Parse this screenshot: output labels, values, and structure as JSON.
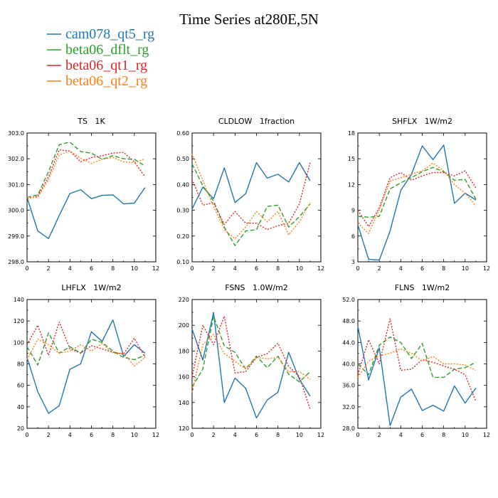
{
  "figure": {
    "title": "Time Series at280E,5N"
  },
  "legend": [
    {
      "name": "cam078_qt5_rg",
      "color": "#1f77b4",
      "dash": "solid"
    },
    {
      "name": "beta06_dflt_rg",
      "color": "#2ca02c",
      "dash": "dashed"
    },
    {
      "name": "beta06_qt1_rg",
      "color": "#d62728",
      "dash": "dotted"
    },
    {
      "name": "beta06_qt2_rg",
      "color": "#ff7f0e",
      "dash": "dotted"
    }
  ],
  "chart_data": [
    {
      "type": "line",
      "title": "TS   1K",
      "x": [
        0,
        1,
        2,
        3,
        4,
        5,
        6,
        7,
        8,
        9,
        10,
        11
      ],
      "xlim": [
        0,
        12
      ],
      "ylim": [
        298.0,
        303.0
      ],
      "xticks": [
        0,
        2,
        4,
        6,
        8,
        10,
        12
      ],
      "yticks": [
        "298.0",
        "299.0",
        "300.0",
        "301.0",
        "302.0",
        "303.0"
      ],
      "series": [
        {
          "name": "cam078_qt5_rg",
          "values": [
            300.5,
            299.2,
            298.9,
            299.8,
            300.65,
            300.8,
            300.45,
            300.58,
            300.6,
            300.25,
            300.28,
            300.88
          ]
        },
        {
          "name": "beta06_dflt_rg",
          "values": [
            300.5,
            300.6,
            301.5,
            302.55,
            302.65,
            302.28,
            302.22,
            301.98,
            302.12,
            302.0,
            301.98,
            301.72
          ]
        },
        {
          "name": "beta06_qt1_rg",
          "values": [
            300.45,
            300.55,
            301.3,
            302.35,
            302.3,
            301.88,
            302.05,
            302.12,
            302.22,
            302.25,
            301.88,
            301.3
          ]
        },
        {
          "name": "beta06_qt2_rg",
          "values": [
            300.5,
            300.5,
            301.2,
            302.15,
            302.3,
            302.02,
            301.82,
            301.98,
            302.05,
            301.88,
            301.85,
            302.0
          ]
        }
      ]
    },
    {
      "type": "line",
      "title": "CLDLOW   1fraction",
      "x": [
        0,
        1,
        2,
        3,
        4,
        5,
        6,
        7,
        8,
        9,
        10,
        11
      ],
      "xlim": [
        0,
        12
      ],
      "ylim": [
        0.1,
        0.6
      ],
      "xticks": [
        0,
        2,
        4,
        6,
        8,
        10,
        12
      ],
      "yticks": [
        "0.10",
        "0.20",
        "0.30",
        "0.40",
        "0.50",
        "0.60"
      ],
      "series": [
        {
          "name": "cam078_qt5_rg",
          "values": [
            0.305,
            0.39,
            0.345,
            0.465,
            0.33,
            0.365,
            0.485,
            0.425,
            0.44,
            0.41,
            0.485,
            0.415
          ]
        },
        {
          "name": "beta06_dflt_rg",
          "values": [
            0.48,
            0.395,
            0.335,
            0.235,
            0.163,
            0.22,
            0.225,
            0.315,
            0.32,
            0.235,
            0.275,
            0.325
          ]
        },
        {
          "name": "beta06_qt1_rg",
          "values": [
            0.42,
            0.32,
            0.33,
            0.245,
            0.295,
            0.25,
            0.25,
            0.225,
            0.24,
            0.25,
            0.325,
            0.485
          ]
        },
        {
          "name": "beta06_qt2_rg",
          "values": [
            0.52,
            0.415,
            0.315,
            0.225,
            0.19,
            0.235,
            0.295,
            0.255,
            0.295,
            0.205,
            0.255,
            0.33
          ]
        }
      ]
    },
    {
      "type": "line",
      "title": "SHFLX   1W/m2",
      "x": [
        0,
        1,
        2,
        3,
        4,
        5,
        6,
        7,
        8,
        9,
        10,
        11
      ],
      "xlim": [
        0,
        12
      ],
      "ylim": [
        3,
        18
      ],
      "xticks": [
        0,
        2,
        4,
        6,
        8,
        10,
        12
      ],
      "yticks": [
        "3",
        "6",
        "9",
        "12",
        "15",
        "18"
      ],
      "series": [
        {
          "name": "cam078_qt5_rg",
          "values": [
            7.3,
            3.3,
            3.2,
            6.6,
            11.3,
            13.2,
            16.5,
            14.9,
            16.6,
            9.8,
            11.0,
            10.2
          ]
        },
        {
          "name": "beta06_dflt_rg",
          "values": [
            8.3,
            8.2,
            8.3,
            11.5,
            12.2,
            12.8,
            13.5,
            14.0,
            13.5,
            12.5,
            12.6,
            10.3
          ]
        },
        {
          "name": "beta06_qt1_rg",
          "values": [
            9.0,
            7.1,
            9.3,
            12.8,
            13.4,
            12.5,
            13.0,
            13.4,
            13.4,
            13.0,
            13.6,
            11.6
          ]
        },
        {
          "name": "beta06_qt2_rg",
          "values": [
            7.5,
            6.3,
            9.1,
            12.4,
            12.8,
            13.2,
            13.6,
            14.5,
            13.6,
            12.0,
            11.0,
            9.5
          ]
        }
      ]
    },
    {
      "type": "line",
      "title": "LHFLX   1W/m2",
      "x": [
        0,
        1,
        2,
        3,
        4,
        5,
        6,
        7,
        8,
        9,
        10,
        11
      ],
      "xlim": [
        0,
        12
      ],
      "ylim": [
        20,
        140
      ],
      "xticks": [
        0,
        2,
        4,
        6,
        8,
        10,
        12
      ],
      "yticks": [
        "20",
        "40",
        "60",
        "80",
        "100",
        "120",
        "140"
      ],
      "series": [
        {
          "name": "cam078_qt5_rg",
          "values": [
            86,
            54,
            34,
            41,
            75,
            80,
            110,
            101,
            121,
            87,
            98,
            90
          ]
        },
        {
          "name": "beta06_dflt_rg",
          "values": [
            96,
            79,
            109,
            90,
            96,
            90,
            103,
            100,
            92,
            86,
            84,
            88
          ]
        },
        {
          "name": "beta06_qt1_rg",
          "values": [
            98,
            116,
            88,
            119,
            94,
            90,
            97,
            94,
            91,
            89,
            104,
            86
          ]
        },
        {
          "name": "beta06_qt2_rg",
          "values": [
            84,
            103,
            98,
            90,
            92,
            98,
            92,
            99,
            90,
            90,
            78,
            86
          ]
        }
      ]
    },
    {
      "type": "line",
      "title": "FSNS   1.0W/m2",
      "x": [
        0,
        1,
        2,
        3,
        4,
        5,
        6,
        7,
        8,
        9,
        10,
        11
      ],
      "xlim": [
        0,
        12
      ],
      "ylim": [
        120,
        220
      ],
      "xticks": [
        0,
        2,
        4,
        6,
        8,
        10,
        12
      ],
      "yticks": [
        "120",
        "140",
        "160",
        "180",
        "200",
        "220"
      ],
      "series": [
        {
          "name": "cam078_qt5_rg",
          "values": [
            197,
            173,
            210,
            140,
            159,
            151,
            128,
            142,
            148,
            179,
            158,
            145
          ]
        },
        {
          "name": "beta06_dflt_rg",
          "values": [
            152,
            166,
            207,
            184,
            179,
            166,
            176,
            167,
            176,
            162,
            156,
            164
          ]
        },
        {
          "name": "beta06_qt1_rg",
          "values": [
            160,
            200,
            185,
            207,
            163,
            164,
            175,
            178,
            186,
            168,
            160,
            135
          ]
        },
        {
          "name": "beta06_qt2_rg",
          "values": [
            148,
            185,
            193,
            178,
            172,
            166,
            175,
            174,
            175,
            164,
            164,
            158
          ]
        }
      ]
    },
    {
      "type": "line",
      "title": "FLNS   1W/m2",
      "x": [
        0,
        1,
        2,
        3,
        4,
        5,
        6,
        7,
        8,
        9,
        10,
        11
      ],
      "xlim": [
        0,
        12
      ],
      "ylim": [
        28.0,
        52.0
      ],
      "xticks": [
        0,
        2,
        4,
        6,
        8,
        10,
        12
      ],
      "yticks": [
        "28.0",
        "32.0",
        "36.0",
        "40.0",
        "44.0",
        "48.0",
        "52.0"
      ],
      "series": [
        {
          "name": "cam078_qt5_rg",
          "values": [
            47.0,
            37.0,
            43.0,
            28.5,
            33.8,
            35.3,
            31.3,
            32.3,
            31.2,
            35.9,
            32.7,
            35.5
          ]
        },
        {
          "name": "beta06_dflt_rg",
          "values": [
            40.0,
            38.0,
            43.5,
            45.0,
            44.0,
            41.0,
            43.8,
            37.5,
            37.5,
            39.0,
            39.3,
            40.3
          ]
        },
        {
          "name": "beta06_qt1_rg",
          "values": [
            38.0,
            44.5,
            40.0,
            48.4,
            38.8,
            39.0,
            40.8,
            40.3,
            39.6,
            39.0,
            38.0,
            33.0
          ]
        },
        {
          "name": "beta06_qt2_rg",
          "values": [
            37.5,
            40.5,
            41.5,
            42.0,
            42.8,
            42.0,
            40.5,
            41.4,
            40.0,
            40.0,
            39.8,
            38.8
          ]
        }
      ]
    }
  ]
}
